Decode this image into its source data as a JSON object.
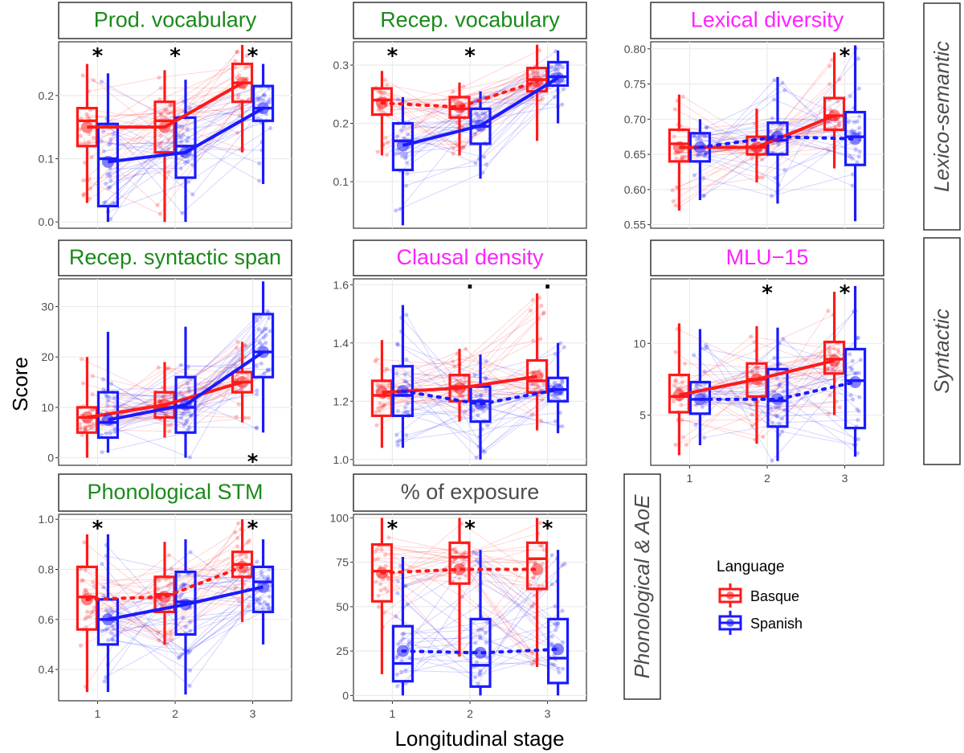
{
  "figure": {
    "x_axis_title": "Longitudinal stage",
    "y_axis_title": "Score",
    "row_strips": [
      "Lexico-semantic",
      "Syntactic",
      "Phonological & AoE"
    ],
    "legend": {
      "title": "Language",
      "items": [
        {
          "label": "Basque",
          "color": "#ff1a1a"
        },
        {
          "label": "Spanish",
          "color": "#1a1aff"
        }
      ]
    }
  },
  "chart_data": [
    {
      "type": "box",
      "title": "Prod. vocabulary",
      "title_color": "#1a8a1a",
      "categories": [
        "1",
        "2",
        "3"
      ],
      "y_ticks": [
        "0.0",
        "0.1",
        "0.2"
      ],
      "ylim": [
        -0.01,
        0.285
      ],
      "significance": [
        "*",
        "*",
        "*"
      ],
      "series": [
        {
          "name": "Basque",
          "mean": [
            0.15,
            0.15,
            0.22
          ],
          "median": [
            0.16,
            0.16,
            0.22
          ],
          "q1": [
            0.12,
            0.11,
            0.19
          ],
          "q3": [
            0.18,
            0.19,
            0.25
          ],
          "whisker_low": [
            0.03,
            0.0,
            0.11
          ],
          "whisker_high": [
            0.25,
            0.24,
            0.28
          ],
          "mean_line": "solid"
        },
        {
          "name": "Spanish",
          "mean": [
            0.095,
            0.11,
            0.18
          ],
          "median": [
            0.1,
            0.12,
            0.18
          ],
          "q1": [
            0.025,
            0.07,
            0.16
          ],
          "q3": [
            0.155,
            0.165,
            0.215
          ],
          "whisker_low": [
            0.0,
            0.0,
            0.06
          ],
          "whisker_high": [
            0.235,
            0.225,
            0.25
          ],
          "mean_line": "solid"
        }
      ]
    },
    {
      "type": "box",
      "title": "Recep. vocabulary",
      "title_color": "#1a8a1a",
      "categories": [
        "1",
        "2",
        "3"
      ],
      "y_ticks": [
        "0.1",
        "0.2",
        "0.3"
      ],
      "ylim": [
        0.02,
        0.34
      ],
      "significance": [
        "*",
        "*",
        ""
      ],
      "series": [
        {
          "name": "Basque",
          "mean": [
            0.235,
            0.228,
            0.272
          ],
          "median": [
            0.24,
            0.225,
            0.275
          ],
          "q1": [
            0.215,
            0.21,
            0.255
          ],
          "q3": [
            0.26,
            0.245,
            0.295
          ],
          "whisker_low": [
            0.145,
            0.145,
            0.17
          ],
          "whisker_high": [
            0.29,
            0.27,
            0.335
          ],
          "mean_line": "dotted"
        },
        {
          "name": "Spanish",
          "mean": [
            0.162,
            0.196,
            0.278
          ],
          "median": [
            0.17,
            0.195,
            0.28
          ],
          "q1": [
            0.12,
            0.165,
            0.265
          ],
          "q3": [
            0.2,
            0.225,
            0.305
          ],
          "whisker_low": [
            0.025,
            0.105,
            0.2
          ],
          "whisker_high": [
            0.245,
            0.255,
            0.325
          ],
          "mean_line": "solid"
        }
      ]
    },
    {
      "type": "box",
      "title": "Lexical diversity",
      "title_color": "#ff22ff",
      "categories": [
        "1",
        "2",
        "3"
      ],
      "y_ticks": [
        "0.55",
        "0.60",
        "0.65",
        "0.70",
        "0.75",
        "0.80"
      ],
      "ylim": [
        0.545,
        0.81
      ],
      "significance": [
        "",
        "",
        "*"
      ],
      "series": [
        {
          "name": "Basque",
          "mean": [
            0.66,
            0.66,
            0.705
          ],
          "median": [
            0.665,
            0.66,
            0.705
          ],
          "q1": [
            0.64,
            0.65,
            0.685
          ],
          "q3": [
            0.685,
            0.675,
            0.73
          ],
          "whisker_low": [
            0.57,
            0.61,
            0.63
          ],
          "whisker_high": [
            0.735,
            0.715,
            0.795
          ],
          "mean_line": "solid"
        },
        {
          "name": "Spanish",
          "mean": [
            0.66,
            0.675,
            0.672
          ],
          "median": [
            0.66,
            0.67,
            0.675
          ],
          "q1": [
            0.64,
            0.65,
            0.635
          ],
          "q3": [
            0.68,
            0.695,
            0.71
          ],
          "whisker_low": [
            0.585,
            0.58,
            0.555
          ],
          "whisker_high": [
            0.7,
            0.76,
            0.805
          ],
          "mean_line": "dotted"
        }
      ]
    },
    {
      "type": "box",
      "title": "Recep. syntactic span",
      "title_color": "#1a8a1a",
      "categories": [
        "1",
        "2",
        "3"
      ],
      "y_ticks": [
        "0",
        "10",
        "20",
        "30"
      ],
      "ylim": [
        -1.5,
        35.5
      ],
      "significance": [
        "",
        "",
        "*"
      ],
      "significance_position": "bottom",
      "series": [
        {
          "name": "Basque",
          "mean": [
            8,
            10.5,
            15
          ],
          "median": [
            8,
            10,
            15
          ],
          "q1": [
            5,
            8,
            13
          ],
          "q3": [
            10,
            13,
            17
          ],
          "whisker_low": [
            0,
            4,
            7
          ],
          "whisker_high": [
            20,
            19,
            23
          ],
          "mean_line": "solid"
        },
        {
          "name": "Spanish",
          "mean": [
            7.5,
            10.5,
            21
          ],
          "median": [
            7,
            10,
            21
          ],
          "q1": [
            4,
            5,
            16
          ],
          "q3": [
            13,
            16,
            28.5
          ],
          "whisker_low": [
            1,
            0,
            5
          ],
          "whisker_high": [
            25,
            26,
            35
          ],
          "mean_line": "solid"
        }
      ]
    },
    {
      "type": "box",
      "title": "Clausal density",
      "title_color": "#ff22ff",
      "categories": [
        "1",
        "2",
        "3"
      ],
      "y_ticks": [
        "1.0",
        "1.2",
        "1.4",
        "1.6"
      ],
      "ylim": [
        0.98,
        1.62
      ],
      "significance": [
        "",
        ".",
        "."
      ],
      "series": [
        {
          "name": "Basque",
          "mean": [
            1.23,
            1.245,
            1.285
          ],
          "median": [
            1.22,
            1.25,
            1.27
          ],
          "q1": [
            1.15,
            1.2,
            1.23
          ],
          "q3": [
            1.27,
            1.29,
            1.34
          ],
          "whisker_low": [
            1.04,
            1.13,
            1.1
          ],
          "whisker_high": [
            1.41,
            1.38,
            1.57
          ],
          "mean_line": "solid"
        },
        {
          "name": "Spanish",
          "mean": [
            1.235,
            1.19,
            1.24
          ],
          "median": [
            1.22,
            1.2,
            1.24
          ],
          "q1": [
            1.15,
            1.13,
            1.2
          ],
          "q3": [
            1.32,
            1.25,
            1.28
          ],
          "whisker_low": [
            1.04,
            1.0,
            1.09
          ],
          "whisker_high": [
            1.53,
            1.36,
            1.4
          ],
          "mean_line": "dotted"
        }
      ]
    },
    {
      "type": "box",
      "title": "MLU−15",
      "title_color": "#ff22ff",
      "categories": [
        "1",
        "2",
        "3"
      ],
      "y_ticks": [
        "5",
        "10"
      ],
      "ylim": [
        1.5,
        14.5
      ],
      "significance": [
        "",
        "*",
        "*"
      ],
      "series": [
        {
          "name": "Basque",
          "mean": [
            6.4,
            7.5,
            8.8
          ],
          "median": [
            6.3,
            7.5,
            8.9
          ],
          "q1": [
            5.2,
            6.3,
            7.9
          ],
          "q3": [
            7.8,
            8.6,
            10.1
          ],
          "whisker_low": [
            2.2,
            3.0,
            5.0
          ],
          "whisker_high": [
            11.4,
            11.2,
            13.6
          ],
          "mean_line": "solid"
        },
        {
          "name": "Spanish",
          "mean": [
            6.1,
            6.1,
            7.3
          ],
          "median": [
            6.1,
            6.0,
            7.4
          ],
          "q1": [
            5.1,
            4.2,
            4.1
          ],
          "q3": [
            7.3,
            8.2,
            9.6
          ],
          "whisker_low": [
            2.9,
            1.8,
            2.1
          ],
          "whisker_high": [
            11.0,
            11.1,
            14.0
          ],
          "mean_line": "dotted"
        }
      ]
    },
    {
      "type": "box",
      "title": "Phonological STM",
      "title_color": "#1a8a1a",
      "categories": [
        "1",
        "2",
        "3"
      ],
      "y_ticks": [
        "0.4",
        "0.6",
        "0.8",
        "1.0"
      ],
      "ylim": [
        0.275,
        1.02
      ],
      "significance": [
        "*",
        "",
        "*"
      ],
      "series": [
        {
          "name": "Basque",
          "mean": [
            0.68,
            0.69,
            0.81
          ],
          "median": [
            0.69,
            0.7,
            0.82
          ],
          "q1": [
            0.56,
            0.63,
            0.77
          ],
          "q3": [
            0.81,
            0.77,
            0.87
          ],
          "whisker_low": [
            0.31,
            0.5,
            0.59
          ],
          "whisker_high": [
            0.94,
            0.91,
            1.0
          ],
          "mean_line": "dotted"
        },
        {
          "name": "Spanish",
          "mean": [
            0.6,
            0.66,
            0.73
          ],
          "median": [
            0.6,
            0.67,
            0.75
          ],
          "q1": [
            0.5,
            0.54,
            0.63
          ],
          "q3": [
            0.68,
            0.79,
            0.81
          ],
          "whisker_low": [
            0.31,
            0.3,
            0.5
          ],
          "whisker_high": [
            0.94,
            0.92,
            0.92
          ],
          "mean_line": "solid"
        }
      ]
    },
    {
      "type": "box",
      "title": "% of exposure",
      "title_color": "#4d4d4d",
      "categories": [
        "1",
        "2",
        "3"
      ],
      "y_ticks": [
        "0",
        "25",
        "50",
        "75",
        "100"
      ],
      "ylim": [
        -3,
        102
      ],
      "significance": [
        "*",
        "*",
        "*"
      ],
      "series": [
        {
          "name": "Basque",
          "mean": [
            69,
            71,
            71
          ],
          "median": [
            70,
            78,
            77
          ],
          "q1": [
            53,
            63,
            60
          ],
          "q3": [
            85,
            86,
            86
          ],
          "whisker_low": [
            12,
            22,
            16
          ],
          "whisker_high": [
            100,
            100,
            100
          ],
          "mean_line": "dotted"
        },
        {
          "name": "Spanish",
          "mean": [
            25,
            24,
            26
          ],
          "median": [
            18,
            17,
            21
          ],
          "q1": [
            8,
            5,
            7
          ],
          "q3": [
            39,
            43,
            43
          ],
          "whisker_low": [
            0,
            0,
            0
          ],
          "whisker_high": [
            78,
            82,
            82
          ],
          "mean_line": "dotted"
        }
      ]
    }
  ]
}
